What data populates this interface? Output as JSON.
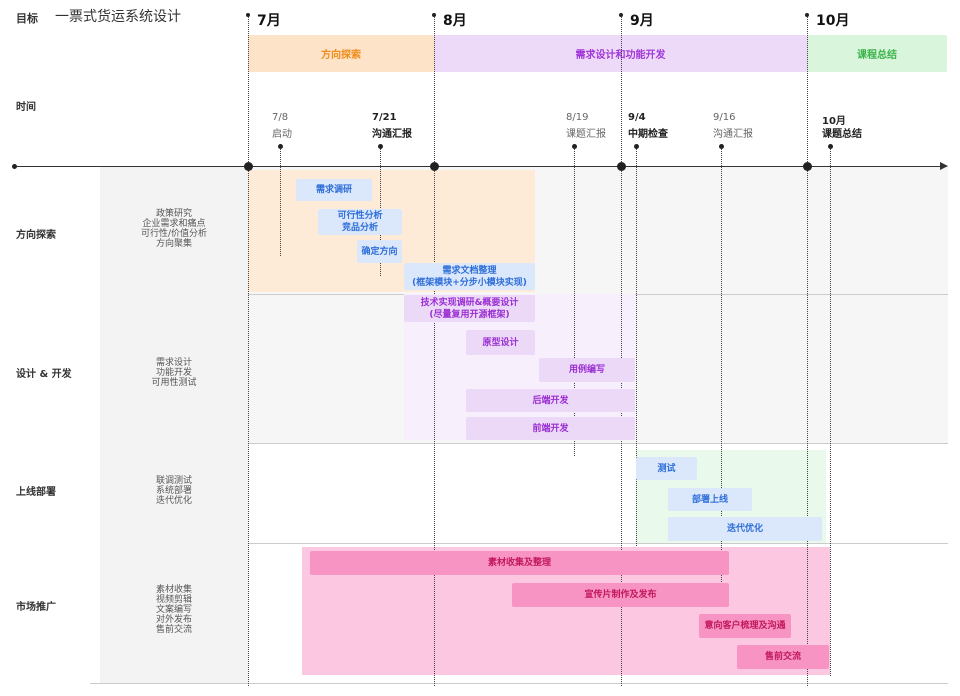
{
  "header": {
    "label": "目标",
    "title": "一票式货运系统设计"
  },
  "months": [
    "7月",
    "8月",
    "9月",
    "10月"
  ],
  "phases": [
    "方向探索",
    "需求设计和功能开发",
    "课程总结"
  ],
  "time_label": "时间",
  "milestones": [
    {
      "date": "7/8",
      "label": "启动"
    },
    {
      "date": "7/21",
      "label": "沟通汇报"
    },
    {
      "date": "8/19",
      "label": "课题汇报"
    },
    {
      "date": "9/4",
      "label": "中期检查"
    },
    {
      "date": "9/16",
      "label": "沟通汇报"
    },
    {
      "date": "10月",
      "label": "课题总结"
    }
  ],
  "lanes": [
    {
      "name": "方向探索",
      "items": [
        "政策研究",
        "企业需求和痛点",
        "可行性/价值分析",
        "方向聚集"
      ],
      "tasks": [
        [
          "需求调研"
        ],
        [
          "可行性分析",
          "竞品分析"
        ],
        [
          "确定方向"
        ],
        [
          "需求文档整理",
          "(框架模块+分步小模块实现)"
        ]
      ]
    },
    {
      "name": "设计 & 开发",
      "items": [
        "需求设计",
        "功能开发",
        "可用性测试"
      ],
      "tasks": [
        [
          "技术实现调研&概要设计",
          "(尽量复用开源框架)"
        ],
        [
          "原型设计"
        ],
        [
          "用例编写"
        ],
        [
          "后端开发"
        ],
        [
          "前端开发"
        ]
      ]
    },
    {
      "name": "上线部署",
      "items": [
        "联调测试",
        "系统部署",
        "迭代优化"
      ],
      "tasks": [
        [
          "测试"
        ],
        [
          "部署上线"
        ],
        [
          "迭代优化"
        ]
      ]
    },
    {
      "name": "市场推广",
      "items": [
        "素材收集",
        "视频剪辑",
        "文案编写",
        "对外发布",
        "售前交流"
      ],
      "tasks": [
        [
          "素材收集及整理"
        ],
        [
          "宣传片制作及发布"
        ],
        [
          "意向客户梳理及沟通"
        ],
        [
          "售前交流"
        ]
      ]
    }
  ]
}
